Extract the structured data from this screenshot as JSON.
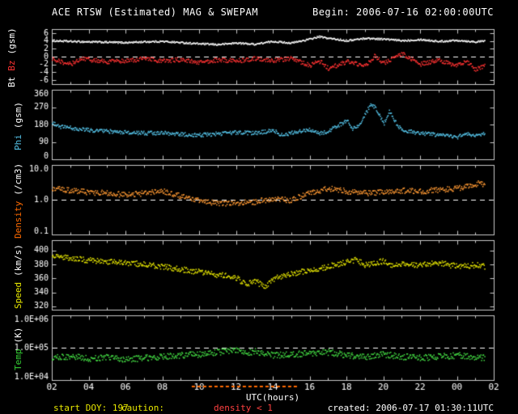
{
  "header": {
    "title": "ACE RTSW (Estimated) MAG & SWEPAM",
    "begin": "Begin: 2006-07-16 02:00:00UTC"
  },
  "footer": {
    "start_doy": "start DOY: 197",
    "start_doy_color": "#e8e800",
    "caution_label": "caution:",
    "caution_label_color": "#e8e800",
    "caution_detail": "density < 1",
    "caution_detail_color": "#ff4040",
    "created": "created: 2006-07-17 01:30:11UTC"
  },
  "colors": {
    "background": "#000000",
    "frame": "#c8c8c8",
    "dashed": "#ffffff",
    "tick_text": "#ffffff"
  },
  "xaxis": {
    "label": "UTC(hours)",
    "range": [
      2,
      26
    ],
    "data_end": 25.5,
    "major_step": 2,
    "minor_step": 1,
    "ticks": [
      2,
      4,
      6,
      8,
      10,
      12,
      14,
      16,
      18,
      20,
      22,
      24,
      26
    ],
    "tick_labels": [
      "02",
      "04",
      "06",
      "08",
      "10",
      "12",
      "14",
      "16",
      "18",
      "20",
      "22",
      "00",
      "02"
    ]
  },
  "caution": {
    "color": "#ff6a00",
    "intervals": [
      [
        9.6,
        15.4
      ]
    ]
  },
  "chart_data": [
    {
      "type": "scatter",
      "scale": "linear",
      "ylim": [
        -7,
        7
      ],
      "dashed_y": 0,
      "label_parts": [
        {
          "text": "Bt",
          "color": "#ffffff"
        },
        {
          "text": "Bz",
          "color": "#ff3232"
        },
        {
          "text": "(gsm)",
          "color": "#ffffff"
        }
      ],
      "yticks": [
        {
          "v": 6,
          "label": "6"
        },
        {
          "v": 4,
          "label": "4"
        },
        {
          "v": 2,
          "label": "2"
        },
        {
          "v": 0,
          "label": "0"
        },
        {
          "v": -2,
          "label": "-2"
        },
        {
          "v": -4,
          "label": "-4"
        },
        {
          "v": -6,
          "label": "-6"
        }
      ],
      "series": [
        {
          "name": "Bt",
          "color": "#ffffff",
          "noise": 0.22,
          "keypoints": [
            [
              2,
              4.2
            ],
            [
              3,
              4.0
            ],
            [
              4,
              3.9
            ],
            [
              5,
              3.8
            ],
            [
              6,
              3.7
            ],
            [
              7,
              3.9
            ],
            [
              8,
              4.0
            ],
            [
              9,
              3.7
            ],
            [
              10,
              3.4
            ],
            [
              11,
              3.2
            ],
            [
              12,
              3.6
            ],
            [
              13,
              3.3
            ],
            [
              14,
              4.0
            ],
            [
              15,
              3.6
            ],
            [
              16,
              4.6
            ],
            [
              16.5,
              5.2
            ],
            [
              17,
              4.8
            ],
            [
              18,
              4.2
            ],
            [
              19,
              4.8
            ],
            [
              20,
              4.6
            ],
            [
              21,
              4.2
            ],
            [
              22,
              4.5
            ],
            [
              23,
              4.0
            ],
            [
              24,
              4.3
            ],
            [
              25,
              3.9
            ],
            [
              25.5,
              4.1
            ]
          ]
        },
        {
          "name": "Bz",
          "color": "#ff3232",
          "noise": 0.55,
          "keypoints": [
            [
              2,
              -0.3
            ],
            [
              2.5,
              -1.2
            ],
            [
              3,
              -1.8
            ],
            [
              3.5,
              -0.5
            ],
            [
              4,
              -0.6
            ],
            [
              5,
              -1.2
            ],
            [
              6,
              -0.9
            ],
            [
              7,
              -0.4
            ],
            [
              8,
              -1.0
            ],
            [
              9,
              -0.6
            ],
            [
              10,
              -1.4
            ],
            [
              11,
              -0.7
            ],
            [
              12,
              -1.0
            ],
            [
              13,
              -0.4
            ],
            [
              14,
              -0.8
            ],
            [
              15,
              -0.3
            ],
            [
              16,
              -2.2
            ],
            [
              16.5,
              -1.0
            ],
            [
              17,
              -2.8
            ],
            [
              18,
              -1.2
            ],
            [
              19,
              -2.2
            ],
            [
              19.5,
              0.3
            ],
            [
              20,
              -1.5
            ],
            [
              21,
              0.8
            ],
            [
              21.5,
              -0.5
            ],
            [
              22,
              -1.8
            ],
            [
              23,
              -0.8
            ],
            [
              24,
              -2.2
            ],
            [
              24.5,
              -1.0
            ],
            [
              25,
              -3.2
            ],
            [
              25.5,
              -2.0
            ]
          ]
        }
      ]
    },
    {
      "type": "scatter",
      "scale": "linear",
      "ylim": [
        0,
        360
      ],
      "dashed_y": null,
      "label_parts": [
        {
          "text": "Phi",
          "color": "#55c3e8"
        },
        {
          "text": "(gsm)",
          "color": "#ffffff"
        }
      ],
      "yticks": [
        {
          "v": 360,
          "label": "360"
        },
        {
          "v": 270,
          "label": "270"
        },
        {
          "v": 180,
          "label": "180"
        },
        {
          "v": 90,
          "label": "90"
        },
        {
          "v": 0,
          "label": "0"
        }
      ],
      "series": [
        {
          "name": "Phi",
          "color": "#55c3e8",
          "noise": 10,
          "keypoints": [
            [
              2,
              190
            ],
            [
              2.5,
              170
            ],
            [
              3,
              165
            ],
            [
              4,
              155
            ],
            [
              5,
              148
            ],
            [
              6,
              142
            ],
            [
              7,
              138
            ],
            [
              8,
              140
            ],
            [
              9,
              132
            ],
            [
              10,
              128
            ],
            [
              11,
              135
            ],
            [
              12,
              142
            ],
            [
              13,
              138
            ],
            [
              14,
              152
            ],
            [
              14.5,
              128
            ],
            [
              15,
              140
            ],
            [
              16,
              155
            ],
            [
              16.5,
              135
            ],
            [
              17,
              150
            ],
            [
              17.5,
              175
            ],
            [
              18,
              205
            ],
            [
              18.3,
              160
            ],
            [
              18.7,
              185
            ],
            [
              19,
              235
            ],
            [
              19.3,
              290
            ],
            [
              19.6,
              265
            ],
            [
              20,
              185
            ],
            [
              20.3,
              250
            ],
            [
              20.6,
              200
            ],
            [
              21,
              150
            ],
            [
              21.5,
              145
            ],
            [
              22,
              138
            ],
            [
              23,
              128
            ],
            [
              24,
              118
            ],
            [
              24.5,
              132
            ],
            [
              25,
              128
            ],
            [
              25.5,
              138
            ]
          ]
        }
      ]
    },
    {
      "type": "scatter",
      "scale": "log",
      "ylim": [
        0.1,
        10
      ],
      "dashed_y": 1,
      "label_parts": [
        {
          "text": "Density",
          "color": "#ff6a00"
        },
        {
          "text": "(/cm3)",
          "color": "#ffffff"
        }
      ],
      "yticks": [
        {
          "v": 10,
          "label": "10.0"
        },
        {
          "v": 1,
          "label": "1.0"
        },
        {
          "v": 0.1,
          "label": "0.1"
        }
      ],
      "series": [
        {
          "name": "Density",
          "color": "#ff9933",
          "noise": 0.18,
          "keypoints": [
            [
              2,
              2.2
            ],
            [
              3,
              1.9
            ],
            [
              4,
              1.7
            ],
            [
              5,
              1.6
            ],
            [
              6,
              1.4
            ],
            [
              7,
              1.6
            ],
            [
              8,
              1.8
            ],
            [
              9,
              1.3
            ],
            [
              10,
              0.95
            ],
            [
              11,
              0.8
            ],
            [
              12,
              0.85
            ],
            [
              13,
              0.9
            ],
            [
              14,
              1.1
            ],
            [
              15,
              1.0
            ],
            [
              16,
              1.6
            ],
            [
              17,
              2.2
            ],
            [
              18,
              1.8
            ],
            [
              19,
              1.6
            ],
            [
              20,
              1.7
            ],
            [
              21,
              1.9
            ],
            [
              22,
              1.8
            ],
            [
              23,
              2.0
            ],
            [
              24,
              2.2
            ],
            [
              25,
              2.8
            ],
            [
              25.2,
              3.2
            ],
            [
              25.5,
              2.6
            ]
          ]
        }
      ]
    },
    {
      "type": "scatter",
      "scale": "linear",
      "ylim": [
        315,
        415
      ],
      "dashed_y": null,
      "label_parts": [
        {
          "text": "Speed",
          "color": "#e8e800"
        },
        {
          "text": "(km/s)",
          "color": "#ffffff"
        }
      ],
      "yticks": [
        {
          "v": 400,
          "label": "400"
        },
        {
          "v": 380,
          "label": "380"
        },
        {
          "v": 360,
          "label": "360"
        },
        {
          "v": 340,
          "label": "340"
        },
        {
          "v": 320,
          "label": "320"
        }
      ],
      "series": [
        {
          "name": "Speed",
          "color": "#e8e800",
          "noise": 4,
          "keypoints": [
            [
              2,
              392
            ],
            [
              3,
              390
            ],
            [
              4,
              387
            ],
            [
              5,
              385
            ],
            [
              6,
              383
            ],
            [
              7,
              381
            ],
            [
              8,
              378
            ],
            [
              9,
              374
            ],
            [
              10,
              370
            ],
            [
              11,
              366
            ],
            [
              12,
              362
            ],
            [
              12.5,
              352
            ],
            [
              13,
              358
            ],
            [
              13.5,
              348
            ],
            [
              14,
              360
            ],
            [
              15,
              368
            ],
            [
              16,
              372
            ],
            [
              17,
              378
            ],
            [
              18,
              384
            ],
            [
              18.5,
              388
            ],
            [
              19,
              380
            ],
            [
              20,
              386
            ],
            [
              20.5,
              378
            ],
            [
              21,
              382
            ],
            [
              22,
              380
            ],
            [
              23,
              383
            ],
            [
              24,
              378
            ],
            [
              25,
              380
            ],
            [
              25.5,
              378
            ]
          ]
        }
      ]
    },
    {
      "type": "scatter",
      "scale": "log",
      "ylim": [
        10000,
        1000000
      ],
      "dashed_y": 100000,
      "label_parts": [
        {
          "text": "Temp",
          "color": "#33cc33"
        },
        {
          "text": "(K)",
          "color": "#ffffff"
        }
      ],
      "yticks": [
        {
          "v": 1000000,
          "label": "1.0E+06"
        },
        {
          "v": 100000,
          "label": "1.0E+05"
        },
        {
          "v": 10000,
          "label": "1.0E+04"
        }
      ],
      "series": [
        {
          "name": "Temp",
          "color": "#44dd44",
          "noise": 0.22,
          "keypoints": [
            [
              2,
              50000
            ],
            [
              3,
              55000
            ],
            [
              4,
              48000
            ],
            [
              5,
              52000
            ],
            [
              6,
              45000
            ],
            [
              7,
              50000
            ],
            [
              8,
              55000
            ],
            [
              9,
              60000
            ],
            [
              10,
              65000
            ],
            [
              11,
              75000
            ],
            [
              12,
              90000
            ],
            [
              12.5,
              70000
            ],
            [
              13,
              80000
            ],
            [
              14,
              60000
            ],
            [
              15,
              65000
            ],
            [
              16,
              70000
            ],
            [
              17,
              75000
            ],
            [
              18,
              60000
            ],
            [
              19,
              55000
            ],
            [
              20,
              65000
            ],
            [
              21,
              55000
            ],
            [
              22,
              50000
            ],
            [
              23,
              55000
            ],
            [
              24,
              60000
            ],
            [
              25,
              50000
            ],
            [
              25.5,
              52000
            ]
          ]
        }
      ]
    }
  ]
}
